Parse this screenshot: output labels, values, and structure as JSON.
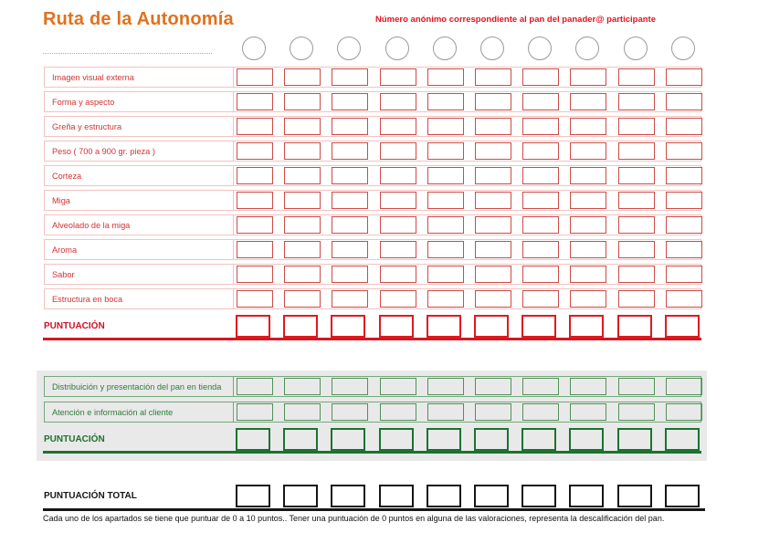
{
  "page": {
    "title": "Ruta de la Autonomía",
    "header_note": "Número anónimo correspondiente al pan del panader@ participante",
    "footer_note": "Cada uno de los apartados se tiene que puntuar de 0 a 10 puntos.. Tener una puntuación de 0 puntos en alguna de las valoraciones, representa la descalificación del pan."
  },
  "columns": {
    "count": 10
  },
  "bread_section": {
    "criteria": [
      "Imagen visual externa",
      "Forma y aspecto",
      "Greña y estructura",
      "Peso ( 700 a 900 gr. pieza )",
      "Corteza",
      "Miga",
      "Alveolado de la miga",
      "Aroma",
      "Sabor",
      "Estructura en boca"
    ],
    "score_label": "PUNTUACIÓN"
  },
  "shop_section": {
    "criteria": [
      "Distribuición y presentación del pan en tienda",
      "Atención e información al cliente"
    ],
    "score_label": "PUNTUACIÓN"
  },
  "total_section": {
    "label": "PUNTUACIÓN TOTAL"
  },
  "colors": {
    "title_orange": "#E2711D",
    "red_accent": "#D51920",
    "light_red_border": "#F2C3C0",
    "cell_red_border": "#CC4B47",
    "green_accent": "#1A7330",
    "light_green_border": "#74A97B",
    "cell_green_border": "#51915A",
    "panel_gray": "#E9E9E9",
    "black": "#161616",
    "circle_gray": "#9A9A9A"
  }
}
